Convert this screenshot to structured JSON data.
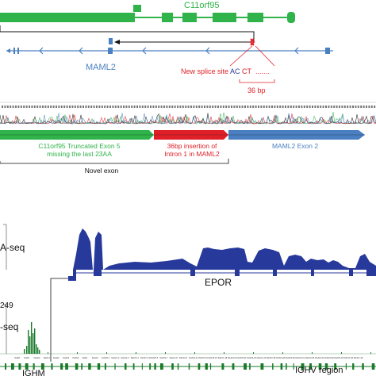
{
  "top_panel": {
    "gene_label": "C11orf95",
    "gene2_label": "MAML2",
    "splice_site_label": "New splice site",
    "splice_seq_prefix": "AC",
    "splice_seq_suffix": "CT",
    "splice_dots": ".......",
    "insert_len_label": "36 bp",
    "segment1_line1": "C11orf95 Truncated Exon 5",
    "segment1_line2": "missing the last 23AA",
    "segment2_line1": "36bp insertion of",
    "segment2_line2": "Intron 1 in MAML2",
    "segment3_label": "MAML2 Exon 2",
    "novel_exon_label": "Novel exon"
  },
  "bottom_panel": {
    "track1_label": "A-seq",
    "track2_range": "249",
    "track2_label": "-seq",
    "gene_epor_label": "EPOR",
    "ighm_label": "IGHM",
    "ighv_label": "IGHV region",
    "ig_gene_labels": [
      "IGHM",
      "IGHD",
      "IGHG3",
      "IGHG1",
      "IGHA1",
      "IGHG2",
      "IGHG4",
      "IGHE",
      "IGHA2",
      "IGHV6-1",
      "IGHV1-2",
      "IGHV1-3",
      "IGHV4-4",
      "IGHV7-4-1",
      "IGHV2-5",
      "IGHV3-7",
      "IGHV1-8",
      "IGHV3-9",
      "IGHV3-11",
      "IGHV3-13",
      "IGHV3-15",
      "IGHV1-18",
      "IGHV3-20",
      "IGHV3-21",
      "IGHV3-23",
      "IGHV1-24",
      "IGHV2-26",
      "IGHV4-28",
      "IGHV3-30",
      "IGHV4-31",
      "IGHV3-33",
      "IGHV4-34",
      "IGHV4-39",
      "IGHV3-43",
      "IGHV1-45",
      "IGHV1-46"
    ]
  },
  "colors": {
    "c11orf95": "#2fb34a",
    "maml2": "#4a7fc1",
    "splice": "#e02028",
    "coverage": "#27399b",
    "green_reads": "#1a7a2a"
  }
}
